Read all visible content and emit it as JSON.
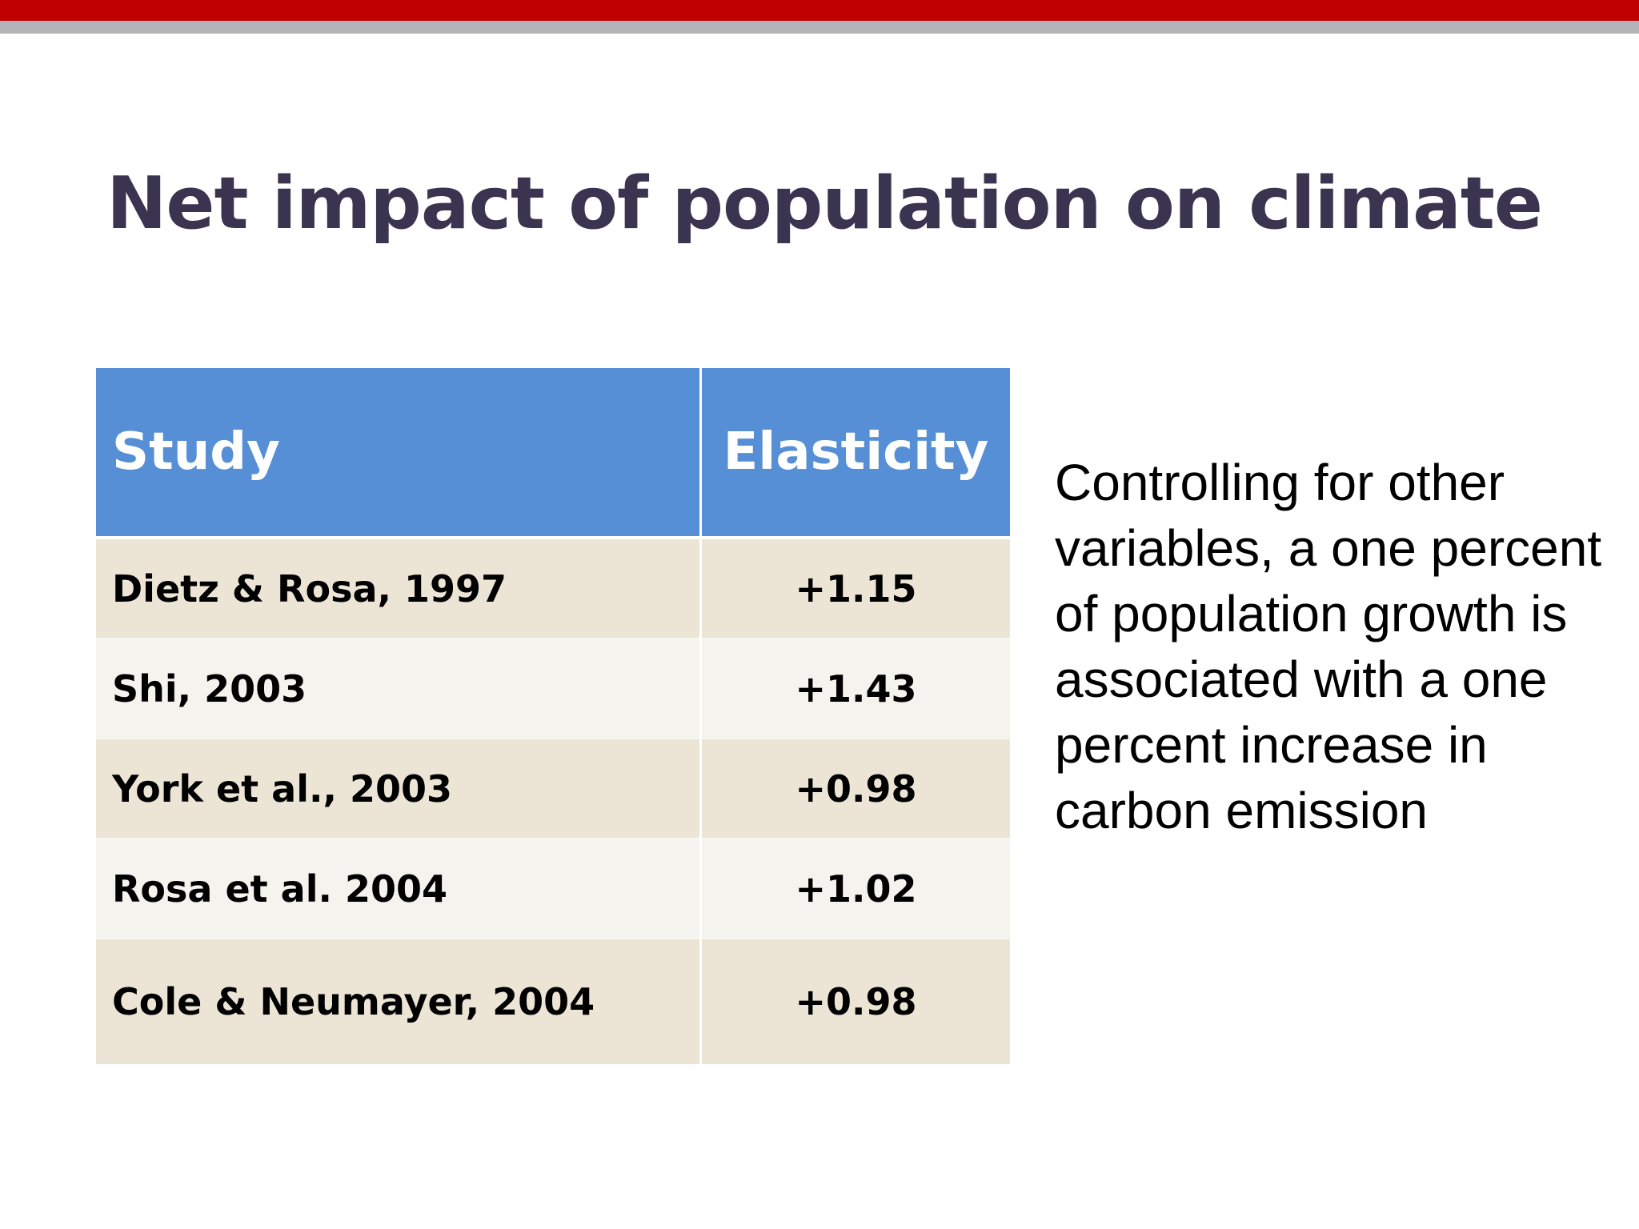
{
  "slide": {
    "title": "Net impact of population on climate",
    "accent_colors": {
      "top_bar": "#c00000",
      "top_bar_secondary": "#b3b3b8",
      "table_header": "#568fd6",
      "title_text": "#3b3450"
    }
  },
  "table": {
    "headers": [
      "Study",
      "Elasticity"
    ],
    "rows": [
      {
        "study": "Dietz & Rosa, 1997",
        "elasticity": "+1.15"
      },
      {
        "study": "Shi, 2003",
        "elasticity": "+1.43"
      },
      {
        "study": "York et al., 2003",
        "elasticity": "+0.98"
      },
      {
        "study": "Rosa et al. 2004",
        "elasticity": "+1.02"
      },
      {
        "study": "Cole & Neumayer, 2004",
        "elasticity": "+0.98"
      }
    ]
  },
  "side_note": {
    "text": "Controlling for other variables, a one percent of population growth is associated with a one percent increase in carbon emission"
  }
}
